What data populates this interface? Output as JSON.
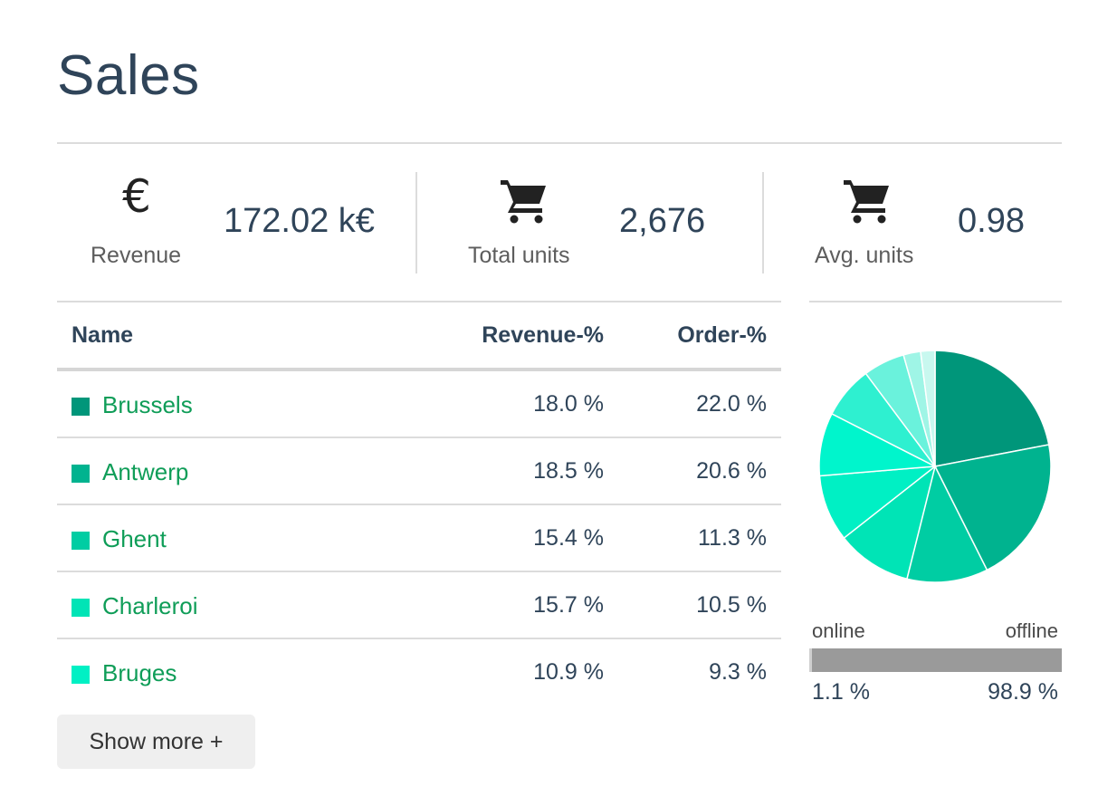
{
  "title": "Sales",
  "kpis": [
    {
      "label": "Revenue",
      "value": "172.02 k€",
      "icon": "euro-icon"
    },
    {
      "label": "Total units",
      "value": "2,676",
      "icon": "shopping-cart-icon"
    },
    {
      "label": "Avg. units",
      "value": "0.98",
      "icon": "shopping-cart-icon"
    }
  ],
  "table": {
    "headers": {
      "name": "Name",
      "revenue": "Revenue-%",
      "order": "Order-%"
    },
    "rows": [
      {
        "name": "Brussels",
        "revenue": "18.0 %",
        "order": "22.0 %",
        "color": "#00967a"
      },
      {
        "name": "Antwerp",
        "revenue": "18.5 %",
        "order": "20.6 %",
        "color": "#00b38f"
      },
      {
        "name": "Ghent",
        "revenue": "15.4 %",
        "order": "11.3 %",
        "color": "#00cda3"
      },
      {
        "name": "Charleroi",
        "revenue": "15.7 %",
        "order": "10.5 %",
        "color": "#00e4b6"
      },
      {
        "name": "Bruges",
        "revenue": "10.9 %",
        "order": "9.3 %",
        "color": "#00f0c4"
      }
    ]
  },
  "show_more_label": "Show more +",
  "channel": {
    "online_label": "online",
    "offline_label": "offline",
    "online_value": "1.1 %",
    "offline_value": "98.9 %",
    "online_fraction": 0.011
  },
  "chart_data": {
    "type": "pie",
    "values": [
      22.0,
      20.6,
      11.3,
      10.5,
      9.3,
      8.8,
      7.3,
      5.8,
      2.4,
      2.0
    ],
    "colors": [
      "#00967a",
      "#00b38f",
      "#00cda3",
      "#00e4b6",
      "#00f0c4",
      "#00f5cc",
      "#2ef0d0",
      "#6af2dc",
      "#9ff5e6",
      "#c8f8ef"
    ]
  }
}
